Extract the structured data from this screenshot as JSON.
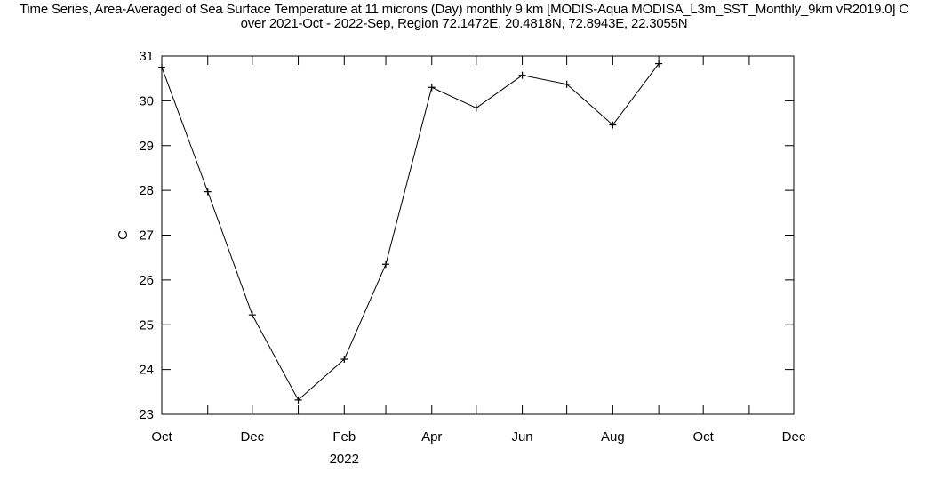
{
  "chart_data": {
    "type": "line",
    "title_line1": "Time Series, Area-Averaged of Sea Surface Temperature at 11 microns (Day) monthly 9 km [MODIS-Aqua MODISA_L3m_SST_Monthly_9km vR2019.0] C",
    "title_line2": "over 2021-Oct - 2022-Sep, Region 72.1472E, 20.4818N, 72.8943E, 22.3055N",
    "ylabel": "C",
    "xlabel": "",
    "year_label": "2022",
    "ylim": [
      23,
      31
    ],
    "y_ticks": [
      23,
      24,
      25,
      26,
      27,
      28,
      29,
      30,
      31
    ],
    "xlim": [
      "2021-10-01",
      "2022-12-01"
    ],
    "x_ticks": [
      "2021-10-01",
      "2021-11-01",
      "2021-12-01",
      "2022-01-01",
      "2022-02-01",
      "2022-03-01",
      "2022-04-01",
      "2022-05-01",
      "2022-06-01",
      "2022-07-01",
      "2022-08-01",
      "2022-09-01",
      "2022-10-01",
      "2022-11-01",
      "2022-12-01"
    ],
    "x_tick_labels": [
      {
        "date": "2021-10-01",
        "label": "Oct"
      },
      {
        "date": "2021-12-01",
        "label": "Dec"
      },
      {
        "date": "2022-02-01",
        "label": "Feb"
      },
      {
        "date": "2022-04-01",
        "label": "Apr"
      },
      {
        "date": "2022-06-01",
        "label": "Jun"
      },
      {
        "date": "2022-08-01",
        "label": "Aug"
      },
      {
        "date": "2022-10-01",
        "label": "Oct"
      },
      {
        "date": "2022-12-01",
        "label": "Dec"
      }
    ],
    "series": [
      {
        "x": [
          "2021-10-01",
          "2021-11-01",
          "2021-12-01",
          "2022-01-01",
          "2022-02-01",
          "2022-03-01",
          "2022-04-01",
          "2022-05-01",
          "2022-06-01",
          "2022-07-01",
          "2022-08-01",
          "2022-09-01"
        ],
        "values": [
          30.75,
          27.97,
          25.22,
          23.32,
          24.23,
          26.35,
          30.3,
          29.84,
          30.57,
          30.37,
          29.46,
          30.83
        ],
        "marker": "plus",
        "color": "#000000"
      }
    ],
    "grid": false
  }
}
